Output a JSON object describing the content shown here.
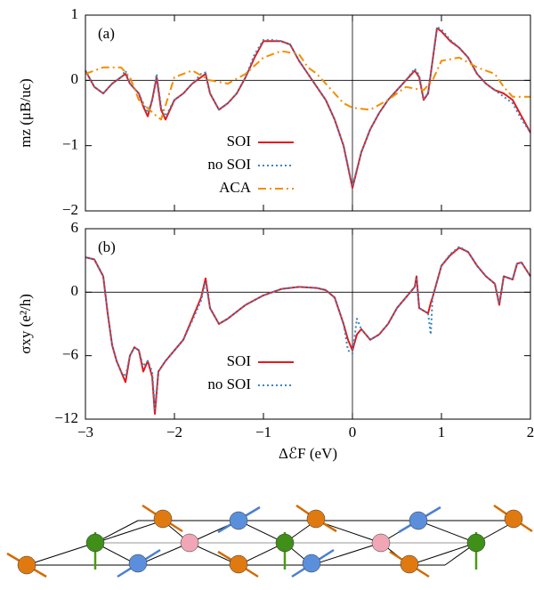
{
  "chart_data": [
    {
      "type": "line",
      "annotation": "(a)",
      "ylabel": "mz (μB/uc)",
      "xlim": [
        -3,
        2
      ],
      "xticks": [
        -3,
        -2,
        -1,
        0,
        1,
        2
      ],
      "ylim": [
        -2,
        1
      ],
      "yticks": [
        {
          "value": -2,
          "label": "−2"
        },
        {
          "value": -1,
          "label": "−1"
        },
        0,
        1
      ],
      "series": [
        {
          "name": "SOI",
          "color": "#e31a1c",
          "style": "solid",
          "x": [
            -3,
            -2.9,
            -2.8,
            -2.7,
            -2.6,
            -2.55,
            -2.5,
            -2.4,
            -2.35,
            -2.3,
            -2.25,
            -2.2,
            -2.15,
            -2.1,
            -2,
            -1.9,
            -1.8,
            -1.7,
            -1.65,
            -1.6,
            -1.5,
            -1.4,
            -1.3,
            -1.2,
            -1.1,
            -1,
            -0.9,
            -0.8,
            -0.7,
            -0.6,
            -0.5,
            -0.4,
            -0.3,
            -0.2,
            -0.1,
            0,
            0.1,
            0.2,
            0.3,
            0.4,
            0.5,
            0.6,
            0.7,
            0.75,
            0.8,
            0.85,
            0.9,
            0.95,
            1,
            1.1,
            1.2,
            1.3,
            1.4,
            1.5,
            1.6,
            1.7,
            1.8,
            1.9,
            2
          ],
          "values": [
            0.15,
            -0.1,
            -0.2,
            -0.05,
            0.05,
            0.1,
            -0.05,
            -0.2,
            -0.4,
            -0.55,
            -0.3,
            0.05,
            -0.45,
            -0.6,
            -0.3,
            -0.2,
            -0.05,
            0.05,
            0.1,
            -0.2,
            -0.45,
            -0.35,
            -0.2,
            0.05,
            0.35,
            0.6,
            0.6,
            0.6,
            0.55,
            0.3,
            0.1,
            -0.1,
            -0.3,
            -0.6,
            -1,
            -1.65,
            -1.1,
            -0.75,
            -0.5,
            -0.3,
            -0.15,
            0,
            0.15,
            0.05,
            -0.3,
            -0.2,
            0.3,
            0.8,
            0.75,
            0.6,
            0.5,
            0.35,
            0.1,
            -0.05,
            -0.15,
            -0.2,
            -0.3,
            -0.55,
            -0.8
          ]
        },
        {
          "name": "no SOI",
          "color": "#3b86c0",
          "style": "dotted",
          "x": [
            -3,
            -2.9,
            -2.8,
            -2.7,
            -2.6,
            -2.55,
            -2.5,
            -2.4,
            -2.35,
            -2.3,
            -2.25,
            -2.2,
            -2.15,
            -2.1,
            -2,
            -1.9,
            -1.8,
            -1.7,
            -1.65,
            -1.6,
            -1.5,
            -1.4,
            -1.3,
            -1.2,
            -1.1,
            -1,
            -0.9,
            -0.8,
            -0.7,
            -0.6,
            -0.5,
            -0.4,
            -0.3,
            -0.2,
            -0.1,
            0,
            0.1,
            0.2,
            0.3,
            0.4,
            0.5,
            0.6,
            0.7,
            0.75,
            0.8,
            0.85,
            0.9,
            0.95,
            1,
            1.1,
            1.2,
            1.3,
            1.4,
            1.5,
            1.6,
            1.7,
            1.8,
            1.9,
            2
          ],
          "values": [
            0.15,
            -0.1,
            -0.2,
            -0.05,
            0.05,
            0.15,
            -0.05,
            -0.2,
            -0.35,
            -0.5,
            -0.3,
            0.1,
            -0.4,
            -0.55,
            -0.3,
            -0.2,
            -0.05,
            0.1,
            0.12,
            -0.2,
            -0.45,
            -0.35,
            -0.2,
            0.05,
            0.4,
            0.62,
            0.62,
            0.6,
            0.55,
            0.3,
            0.1,
            -0.1,
            -0.3,
            -0.6,
            -1,
            -1.62,
            -1.1,
            -0.75,
            -0.5,
            -0.3,
            -0.15,
            0,
            0.18,
            0.08,
            -0.28,
            -0.2,
            0.3,
            0.82,
            0.78,
            0.62,
            0.5,
            0.35,
            0.1,
            -0.05,
            -0.15,
            -0.25,
            -0.35,
            -0.6,
            -0.8
          ]
        },
        {
          "name": "ACA",
          "color": "#f28e00",
          "style": "dashdot",
          "x": [
            -3,
            -2.8,
            -2.6,
            -2.5,
            -2.4,
            -2.2,
            -2.15,
            -2,
            -1.8,
            -1.6,
            -1.4,
            -1.2,
            -1,
            -0.8,
            -0.6,
            -0.5,
            -0.4,
            -0.2,
            -0.1,
            0,
            0.2,
            0.4,
            0.6,
            0.8,
            0.9,
            1,
            1.2,
            1.4,
            1.6,
            1.7,
            1.8,
            2
          ],
          "values": [
            0.1,
            0.2,
            0.2,
            0.05,
            -0.3,
            -0.55,
            -0.6,
            0.05,
            0.15,
            0,
            -0.05,
            0.1,
            0.35,
            0.45,
            0.4,
            0.2,
            0.1,
            -0.2,
            -0.35,
            -0.42,
            -0.45,
            -0.3,
            -0.1,
            -0.15,
            0,
            0.3,
            0.35,
            0.2,
            0.1,
            -0.1,
            -0.25,
            -0.25
          ]
        }
      ]
    },
    {
      "type": "line",
      "annotation": "(b)",
      "ylabel": "σxy (e²/h)",
      "xlabel": "ΔℰF (eV)",
      "xlim": [
        -3,
        2
      ],
      "xticks": [
        {
          "value": -3,
          "label": "−3"
        },
        {
          "value": -2,
          "label": "−2"
        },
        {
          "value": -1,
          "label": "−1"
        },
        0,
        1,
        2
      ],
      "ylim": [
        -12,
        6
      ],
      "yticks": [
        {
          "value": -12,
          "label": "−12"
        },
        {
          "value": -6,
          "label": "−6"
        },
        0,
        6
      ],
      "series": [
        {
          "name": "SOI",
          "color": "#e31a1c",
          "style": "solid",
          "x": [
            -3,
            -2.9,
            -2.8,
            -2.75,
            -2.7,
            -2.65,
            -2.6,
            -2.55,
            -2.5,
            -2.45,
            -2.4,
            -2.35,
            -2.3,
            -2.25,
            -2.22,
            -2.18,
            -2.1,
            -2,
            -1.9,
            -1.8,
            -1.7,
            -1.65,
            -1.6,
            -1.5,
            -1.4,
            -1.2,
            -1,
            -0.8,
            -0.6,
            -0.4,
            -0.3,
            -0.2,
            -0.1,
            -0.05,
            0,
            0.05,
            0.1,
            0.2,
            0.3,
            0.4,
            0.5,
            0.6,
            0.7,
            0.72,
            0.75,
            0.85,
            0.88,
            0.9,
            1,
            1.1,
            1.2,
            1.3,
            1.4,
            1.5,
            1.6,
            1.65,
            1.7,
            1.8,
            1.85,
            1.9,
            2
          ],
          "values": [
            3.3,
            3.1,
            1.5,
            -2,
            -5,
            -6.5,
            -7.5,
            -8.5,
            -6,
            -5.2,
            -5.5,
            -7.5,
            -6.5,
            -8,
            -11.5,
            -7.5,
            -6.5,
            -5.5,
            -4.5,
            -2.5,
            -0.5,
            1.3,
            -1.5,
            -3,
            -2.5,
            -1.2,
            -0.3,
            0.3,
            0.5,
            0.4,
            0.2,
            -0.5,
            -3,
            -4.5,
            -5.5,
            -4,
            -3.5,
            -4.5,
            -4,
            -3,
            -1.5,
            -0.5,
            0.5,
            1.5,
            -1.5,
            -2,
            -1,
            -0.5,
            2.5,
            3.5,
            4.2,
            3.8,
            2.5,
            1.5,
            0.8,
            -1.2,
            1.5,
            1.2,
            2.7,
            2.8,
            1.5
          ]
        },
        {
          "name": "no SOI",
          "color": "#3b86c0",
          "style": "dotted",
          "x": [
            -3,
            -2.9,
            -2.8,
            -2.75,
            -2.7,
            -2.65,
            -2.6,
            -2.55,
            -2.5,
            -2.45,
            -2.4,
            -2.35,
            -2.3,
            -2.25,
            -2.22,
            -2.18,
            -2.1,
            -2,
            -1.9,
            -1.8,
            -1.7,
            -1.65,
            -1.6,
            -1.5,
            -1.4,
            -1.2,
            -1,
            -0.8,
            -0.6,
            -0.4,
            -0.3,
            -0.2,
            -0.1,
            -0.05,
            0,
            0.05,
            0.1,
            0.2,
            0.3,
            0.4,
            0.5,
            0.6,
            0.7,
            0.72,
            0.75,
            0.85,
            0.88,
            0.9,
            1,
            1.1,
            1.2,
            1.3,
            1.4,
            1.5,
            1.6,
            1.65,
            1.7,
            1.8,
            1.85,
            1.9,
            2
          ],
          "values": [
            3.3,
            3.1,
            1.5,
            -2,
            -5,
            -6.5,
            -7.5,
            -8,
            -6,
            -5.2,
            -5.5,
            -7,
            -6.5,
            -7.5,
            -11,
            -7.5,
            -6.5,
            -5.5,
            -4.5,
            -2.7,
            -0.8,
            1,
            -1.5,
            -3,
            -2.5,
            -1.2,
            -0.3,
            0.3,
            0.5,
            0.4,
            0.2,
            -0.5,
            -3,
            -5.5,
            -5.8,
            -2.5,
            -3.5,
            -4.5,
            -4,
            -3,
            -1.5,
            -0.5,
            0.5,
            1.2,
            -1.5,
            -2,
            -4,
            -0.5,
            2.5,
            3.6,
            4.3,
            3.8,
            2.5,
            1.5,
            0.8,
            -1,
            1.5,
            1.2,
            2.7,
            2.8,
            1.5
          ]
        }
      ]
    }
  ]
}
